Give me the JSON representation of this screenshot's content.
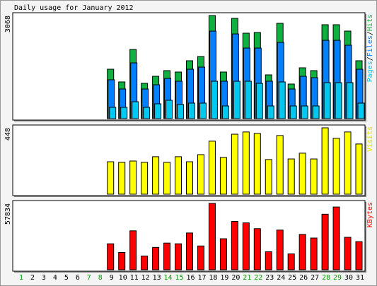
{
  "chart_data": [
    {
      "type": "bar",
      "title": "Daily usage for January 2012",
      "ylim": [
        0,
        3068
      ],
      "yticks": [
        3068
      ],
      "legend_separator": "/",
      "series": [
        {
          "name": "Pages",
          "color": "#00c8f0",
          "values": [
            null,
            null,
            null,
            null,
            null,
            null,
            null,
            null,
            336,
            336,
            504,
            336,
            441,
            546,
            420,
            462,
            462,
            1113,
            378,
            1113,
            1113,
            1050,
            378,
            1092,
            378,
            378,
            378,
            1071,
            1071,
            1071,
            462
          ]
        },
        {
          "name": "Files",
          "color": "#0080ff",
          "values": [
            null,
            null,
            null,
            null,
            null,
            null,
            null,
            null,
            1156,
            882,
            1659,
            882,
            1008,
            1197,
            1113,
            1470,
            1533,
            2604,
            1113,
            2520,
            2100,
            2100,
            1113,
            2268,
            882,
            1260,
            1218,
            2331,
            2331,
            2184,
            1470
          ]
        },
        {
          "name": "Hits",
          "color": "#10b040",
          "values": [
            null,
            null,
            null,
            null,
            null,
            null,
            null,
            null,
            1471,
            1093,
            2059,
            1051,
            1261,
            1429,
            1387,
            1723,
            1849,
            3068,
            1387,
            2984,
            2543,
            2564,
            1303,
            2837,
            1030,
            1513,
            1429,
            2795,
            2795,
            2606,
            1723
          ]
        }
      ]
    },
    {
      "type": "bar",
      "ylim": [
        0,
        448
      ],
      "yticks": [
        448
      ],
      "series": [
        {
          "name": "Visits",
          "color": "#ffff00",
          "values": [
            null,
            null,
            null,
            null,
            null,
            null,
            null,
            null,
            219,
            215,
            224,
            215,
            253,
            215,
            253,
            219,
            267,
            358,
            248,
            405,
            420,
            410,
            234,
            396,
            238,
            277,
            238,
            448,
            377,
            420,
            339
          ]
        }
      ]
    },
    {
      "type": "bar",
      "ylim": [
        0,
        57834
      ],
      "yticks": [
        57834
      ],
      "categories": [
        "1",
        "2",
        "3",
        "4",
        "5",
        "6",
        "7",
        "8",
        "9",
        "10",
        "11",
        "12",
        "13",
        "14",
        "15",
        "16",
        "17",
        "18",
        "19",
        "20",
        "21",
        "22",
        "23",
        "24",
        "25",
        "26",
        "27",
        "28",
        "29",
        "30",
        "31"
      ],
      "category_colors": [
        "#00a000",
        "#000000",
        "#000000",
        "#000000",
        "#000000",
        "#000000",
        "#00a000",
        "#00a000",
        "#000000",
        "#000000",
        "#000000",
        "#000000",
        "#000000",
        "#00a000",
        "#00a000",
        "#000000",
        "#000000",
        "#000000",
        "#000000",
        "#000000",
        "#00a000",
        "#00a000",
        "#000000",
        "#000000",
        "#000000",
        "#000000",
        "#000000",
        "#00a000",
        "#00a000",
        "#000000",
        "#000000"
      ],
      "series": [
        {
          "name": "KBytes",
          "color": "#ff0000",
          "values": [
            null,
            null,
            null,
            null,
            null,
            null,
            null,
            null,
            22630,
            15086,
            33944,
            11943,
            19487,
            23258,
            22630,
            32059,
            20744,
            57834,
            27030,
            42116,
            40859,
            35830,
            15715,
            34573,
            13829,
            30801,
            27658,
            48402,
            54688,
            28287,
            24515
          ]
        }
      ]
    }
  ]
}
